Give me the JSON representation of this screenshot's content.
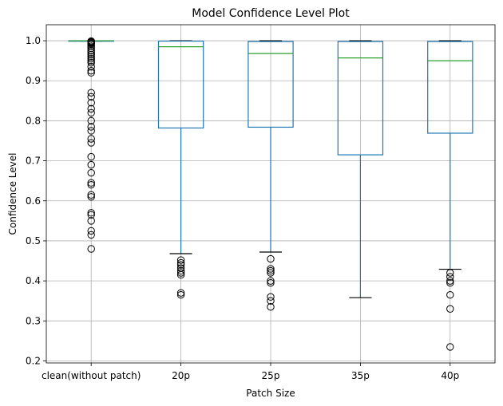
{
  "chart_data": {
    "type": "box",
    "title": "Model Confidence Level Plot",
    "xlabel": "Patch Size",
    "ylabel": "Confidence Level",
    "ylim": [
      0.195,
      1.04
    ],
    "yticks": [
      0.2,
      0.3,
      0.4,
      0.5,
      0.6,
      0.7,
      0.8,
      0.9,
      1.0
    ],
    "ytick_labels": [
      "0.2",
      "0.3",
      "0.4",
      "0.5",
      "0.6",
      "0.7",
      "0.8",
      "0.9",
      "1.0"
    ],
    "grid": true,
    "colors": {
      "box": "#1f77b4",
      "median": "#2ca02c",
      "whisker_cap": "#000000",
      "grid": "#b0b0b0"
    },
    "categories": [
      "clean(without patch)",
      "20p",
      "25p",
      "35p",
      "40p"
    ],
    "boxes": [
      {
        "category": "clean(without patch)",
        "whisker_low": 0.999,
        "q1": 0.9995,
        "median": 1.0,
        "q3": 1.0,
        "whisker_high": 1.0,
        "outliers": [
          0.999,
          0.998,
          0.997,
          0.996,
          0.995,
          0.993,
          0.99,
          0.986,
          0.981,
          0.975,
          0.97,
          0.965,
          0.96,
          0.955,
          0.95,
          0.945,
          0.935,
          0.925,
          0.92,
          0.87,
          0.86,
          0.845,
          0.83,
          0.82,
          0.8,
          0.785,
          0.775,
          0.755,
          0.745,
          0.71,
          0.69,
          0.67,
          0.645,
          0.64,
          0.615,
          0.61,
          0.57,
          0.565,
          0.55,
          0.525,
          0.515,
          0.48
        ]
      },
      {
        "category": "20p",
        "whisker_low": 0.468,
        "q1": 0.782,
        "median": 0.985,
        "q3": 0.999,
        "whisker_high": 1.0,
        "outliers": [
          0.452,
          0.445,
          0.44,
          0.432,
          0.425,
          0.42,
          0.415,
          0.37,
          0.365
        ]
      },
      {
        "category": "25p",
        "whisker_low": 0.472,
        "q1": 0.784,
        "median": 0.968,
        "q3": 0.998,
        "whisker_high": 1.0,
        "outliers": [
          0.455,
          0.43,
          0.425,
          0.42,
          0.4,
          0.395,
          0.36,
          0.35,
          0.335
        ]
      },
      {
        "category": "35p",
        "whisker_low": 0.358,
        "q1": 0.715,
        "median": 0.957,
        "q3": 0.998,
        "whisker_high": 1.0,
        "outliers": []
      },
      {
        "category": "40p",
        "whisker_low": 0.429,
        "q1": 0.769,
        "median": 0.95,
        "q3": 0.998,
        "whisker_high": 1.0,
        "outliers": [
          0.42,
          0.41,
          0.4,
          0.395,
          0.365,
          0.33,
          0.235
        ]
      }
    ]
  }
}
